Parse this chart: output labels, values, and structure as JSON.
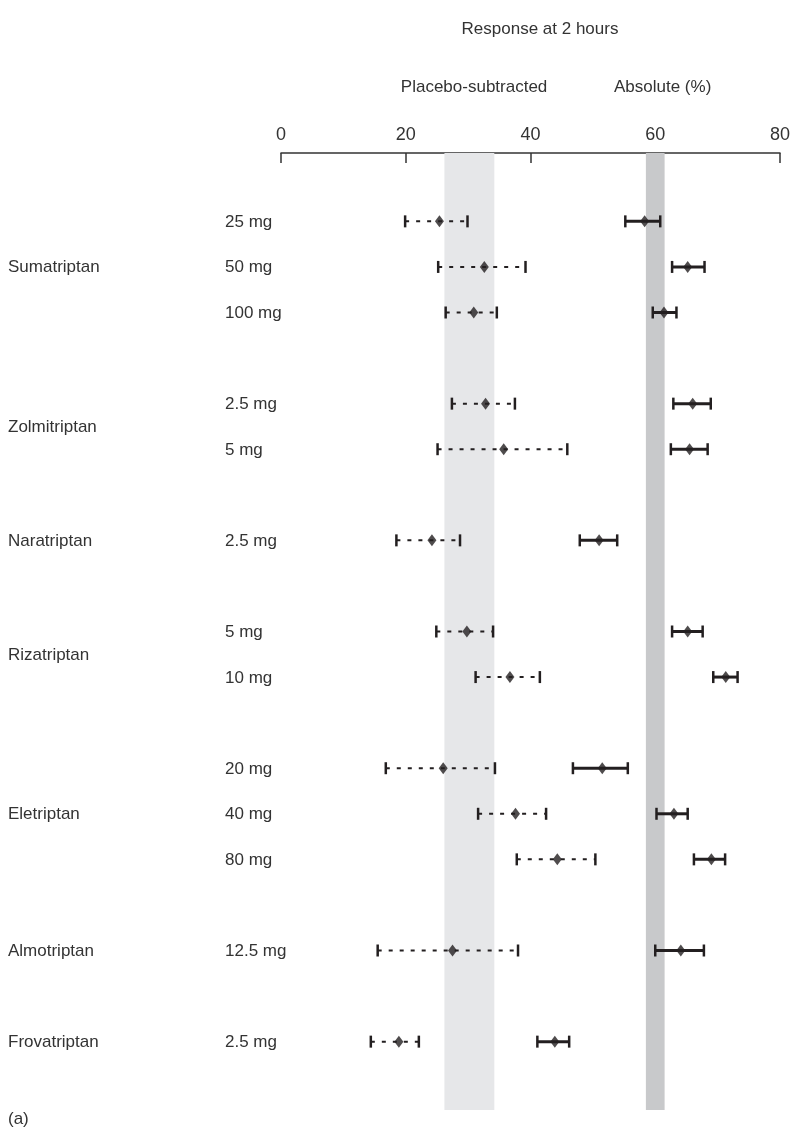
{
  "chart_data": {
    "type": "scatter",
    "orientation": "horizontal",
    "marker": "diamond",
    "title": "Response at 2 hours",
    "categories": [
      null,
      "25 mg",
      "50 mg",
      "100 mg",
      null,
      "2.5 mg",
      "5 mg",
      null,
      "2.5 mg",
      null,
      "5 mg",
      "10 mg",
      null,
      "20 mg",
      "40 mg",
      "80 mg",
      null,
      "12.5 mg",
      null,
      "2.5 mg",
      null
    ],
    "series": [
      {
        "name": "Placebo-subtracted",
        "color": "#231f20",
        "line_style": "dashed",
        "values": [
          null,
          25.4,
          32.6,
          30.9,
          null,
          32.8,
          35.7,
          null,
          24.2,
          null,
          29.8,
          36.7,
          null,
          26.0,
          37.6,
          44.3,
          null,
          27.5,
          null,
          18.9,
          null
        ],
        "errors": [
          null,
          [
            19.9,
            29.9
          ],
          [
            25.2,
            39.2
          ],
          [
            26.4,
            34.6
          ],
          null,
          [
            27.4,
            37.5
          ],
          [
            25.1,
            45.9
          ],
          null,
          [
            18.5,
            28.7
          ],
          null,
          [
            24.9,
            34.0
          ],
          [
            31.2,
            41.5
          ],
          null,
          [
            16.8,
            34.3
          ],
          [
            31.6,
            42.5
          ],
          [
            37.8,
            50.4
          ],
          null,
          [
            15.5,
            38.0
          ],
          null,
          [
            14.4,
            22.1
          ],
          null
        ]
      },
      {
        "name": "Absolute (%)",
        "color": "#231f20",
        "line_style": "solid",
        "values": [
          null,
          58.3,
          65.2,
          61.4,
          null,
          66.0,
          65.5,
          null,
          51.0,
          null,
          65.2,
          71.3,
          null,
          51.5,
          63.0,
          69.0,
          null,
          64.1,
          null,
          43.9,
          null
        ],
        "errors": [
          null,
          [
            55.2,
            60.8
          ],
          [
            62.7,
            67.9
          ],
          [
            59.6,
            63.4
          ],
          null,
          [
            62.9,
            68.9
          ],
          [
            62.5,
            68.4
          ],
          null,
          [
            47.9,
            53.9
          ],
          null,
          [
            62.7,
            67.6
          ],
          [
            69.3,
            73.2
          ],
          null,
          [
            46.8,
            55.6
          ],
          [
            60.2,
            65.2
          ],
          [
            66.2,
            71.2
          ],
          null,
          [
            60.0,
            67.8
          ],
          null,
          [
            41.1,
            46.2
          ],
          null
        ]
      }
    ],
    "bands": [
      {
        "axis": "x",
        "from": 26.2,
        "to": 34.2,
        "color": "#e6e7e9"
      },
      {
        "axis": "x",
        "from": 58.5,
        "to": 61.5,
        "color": "#c8c9cb"
      }
    ],
    "xlim": [
      0,
      80
    ],
    "xticks": [
      0,
      20,
      40,
      60,
      80
    ],
    "annotations": [
      "Sumatriptan",
      "Zolmitriptan",
      "Naratriptan",
      "Rizatriptan",
      "Eletriptan",
      "Almotriptan",
      "Frovatriptan",
      "(a)"
    ]
  }
}
